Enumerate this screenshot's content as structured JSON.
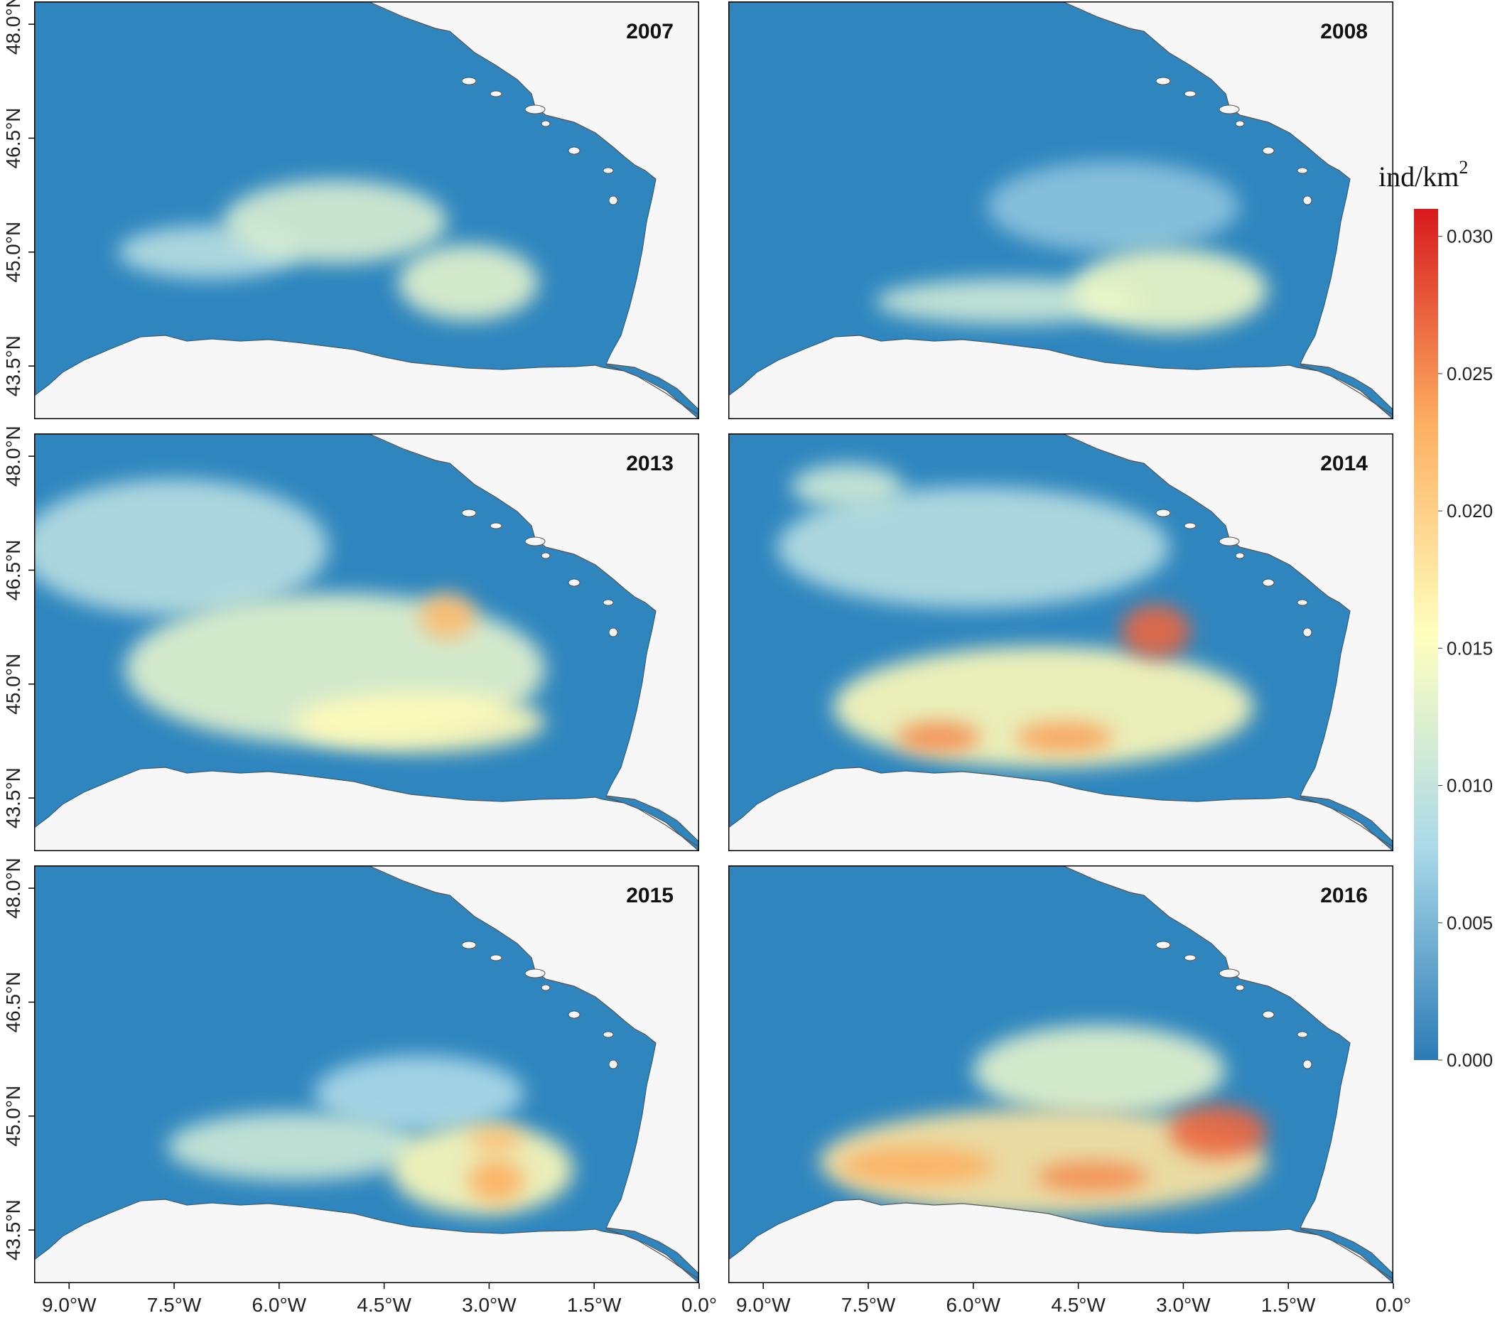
{
  "chart_data": {
    "type": "heatmap",
    "subject": "Bay of Biscay density maps",
    "legend": {
      "title_main": "ind/km",
      "title_sup": "2",
      "range": [
        0.0,
        0.031
      ],
      "ticks": [
        "0.000",
        "0.005",
        "0.010",
        "0.015",
        "0.020",
        "0.025",
        "0.030"
      ],
      "tick_values": [
        0.0,
        0.005,
        0.01,
        0.015,
        0.02,
        0.025,
        0.03
      ],
      "colors": [
        "#2c7bb6",
        "#abd9e9",
        "#ffffbf",
        "#fdae61",
        "#d7191c"
      ],
      "placement": "right"
    },
    "x_axis": {
      "ticks": [
        "9.0°W",
        "7.5°W",
        "6.0°W",
        "4.5°W",
        "3.0°W",
        "1.5°W",
        "0.0°"
      ],
      "tick_values": [
        -9.0,
        -7.5,
        -6.0,
        -4.5,
        -3.0,
        -1.5,
        0.0
      ],
      "range": [
        -9.5,
        0.0
      ]
    },
    "y_axis": {
      "ticks": [
        "43.5°N",
        "45.0°N",
        "46.5°N",
        "48.0°N"
      ],
      "tick_values": [
        43.5,
        45.0,
        46.5,
        48.0
      ],
      "range": [
        42.8,
        48.3
      ]
    },
    "colors": {
      "sea_low": "#2f86be",
      "land": "#f7f7f7",
      "coast": "#555555",
      "frame": "#000000"
    },
    "panels": [
      {
        "year": "2007",
        "hotspots": [
          {
            "lon": -5.2,
            "lat": 45.4,
            "rx": 1.6,
            "ry": 0.55,
            "value": 0.012
          },
          {
            "lon": -3.3,
            "lat": 44.6,
            "rx": 1.0,
            "ry": 0.5,
            "value": 0.013
          },
          {
            "lon": -7.0,
            "lat": 45.0,
            "rx": 1.3,
            "ry": 0.35,
            "value": 0.009
          }
        ]
      },
      {
        "year": "2008",
        "hotspots": [
          {
            "lon": -3.2,
            "lat": 44.5,
            "rx": 1.4,
            "ry": 0.55,
            "value": 0.014
          },
          {
            "lon": -5.5,
            "lat": 44.35,
            "rx": 1.9,
            "ry": 0.3,
            "value": 0.011
          },
          {
            "lon": -4.0,
            "lat": 45.6,
            "rx": 1.8,
            "ry": 0.6,
            "value": 0.006
          }
        ]
      },
      {
        "year": "2013",
        "hotspots": [
          {
            "lon": -5.2,
            "lat": 45.2,
            "rx": 3.0,
            "ry": 1.0,
            "value": 0.013
          },
          {
            "lon": -7.5,
            "lat": 46.8,
            "rx": 2.2,
            "ry": 0.9,
            "value": 0.009
          },
          {
            "lon": -3.6,
            "lat": 45.9,
            "rx": 0.4,
            "ry": 0.3,
            "value": 0.022
          },
          {
            "lon": -4.0,
            "lat": 44.5,
            "rx": 1.8,
            "ry": 0.4,
            "value": 0.016
          }
        ]
      },
      {
        "year": "2014",
        "hotspots": [
          {
            "lon": -5.0,
            "lat": 44.7,
            "rx": 3.0,
            "ry": 0.8,
            "value": 0.016
          },
          {
            "lon": -6.0,
            "lat": 46.8,
            "rx": 2.8,
            "ry": 0.8,
            "value": 0.009
          },
          {
            "lon": -3.4,
            "lat": 45.7,
            "rx": 0.5,
            "ry": 0.35,
            "value": 0.027
          },
          {
            "lon": -6.5,
            "lat": 44.3,
            "rx": 0.6,
            "ry": 0.2,
            "value": 0.025
          },
          {
            "lon": -4.7,
            "lat": 44.3,
            "rx": 0.7,
            "ry": 0.2,
            "value": 0.024
          },
          {
            "lon": -7.8,
            "lat": 47.6,
            "rx": 0.8,
            "ry": 0.3,
            "value": 0.011
          }
        ]
      },
      {
        "year": "2015",
        "hotspots": [
          {
            "lon": -3.1,
            "lat": 44.3,
            "rx": 1.3,
            "ry": 0.6,
            "value": 0.016
          },
          {
            "lon": -2.9,
            "lat": 44.15,
            "rx": 0.4,
            "ry": 0.3,
            "value": 0.023
          },
          {
            "lon": -2.9,
            "lat": 44.7,
            "rx": 0.4,
            "ry": 0.15,
            "value": 0.022
          },
          {
            "lon": -5.8,
            "lat": 44.6,
            "rx": 1.8,
            "ry": 0.45,
            "value": 0.011
          },
          {
            "lon": -4.0,
            "lat": 45.3,
            "rx": 1.5,
            "ry": 0.5,
            "value": 0.008
          }
        ]
      },
      {
        "year": "2016",
        "hotspots": [
          {
            "lon": -5.0,
            "lat": 44.4,
            "rx": 3.2,
            "ry": 0.7,
            "value": 0.018
          },
          {
            "lon": -2.5,
            "lat": 44.8,
            "rx": 0.7,
            "ry": 0.35,
            "value": 0.027
          },
          {
            "lon": -6.8,
            "lat": 44.35,
            "rx": 1.1,
            "ry": 0.25,
            "value": 0.023
          },
          {
            "lon": -4.3,
            "lat": 44.2,
            "rx": 0.8,
            "ry": 0.2,
            "value": 0.025
          },
          {
            "lon": -4.2,
            "lat": 45.6,
            "rx": 1.8,
            "ry": 0.6,
            "value": 0.013
          }
        ]
      }
    ]
  }
}
